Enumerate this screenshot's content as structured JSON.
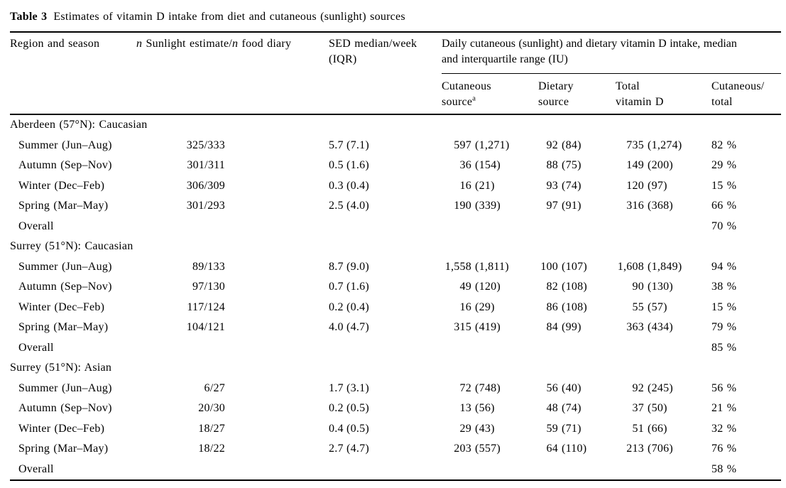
{
  "caption": {
    "label": "Table 3",
    "title": "Estimates of vitamin D intake from diet and cutaneous (sunlight) sources"
  },
  "header": {
    "region": "Region and season",
    "n_col": {
      "i1": "n",
      "t1": " Sunlight estimate/",
      "i2": "n",
      "t2": " food diary"
    },
    "sed": {
      "line1": "SED median/week",
      "line2": "(IQR)"
    },
    "spanner": {
      "line1": "Daily cutaneous (sunlight) and dietary vitamin D intake, median",
      "line2": "and interquartile range (IU)"
    },
    "sub": {
      "cutaneous": {
        "line1": "Cutaneous",
        "line2": "source",
        "sup": "a"
      },
      "dietary": {
        "line1": "Dietary",
        "line2": "source"
      },
      "total": {
        "line1": "Total",
        "line2": "vitamin D"
      },
      "ratio": {
        "line1": "Cutaneous/",
        "line2": "total"
      }
    }
  },
  "body": {
    "rows": [
      {
        "type": "section",
        "label": "Aberdeen (57°N): Caucasian"
      },
      {
        "type": "data",
        "label": "Summer (Jun–Aug)",
        "n": "325/333",
        "sed_med": "5.7",
        "sed_iqr": "(7.1)",
        "cut_med": "597",
        "cut_iqr": "(1,271)",
        "diet_med": "92",
        "diet_iqr": "(84)",
        "tot_med": "735",
        "tot_iqr": "(1,274)",
        "pct": "82 %"
      },
      {
        "type": "data",
        "label": "Autumn (Sep–Nov)",
        "n": "301/311",
        "sed_med": "0.5",
        "sed_iqr": "(1.6)",
        "cut_med": "36",
        "cut_iqr": "(154)",
        "diet_med": "88",
        "diet_iqr": "(75)",
        "tot_med": "149",
        "tot_iqr": "(200)",
        "pct": "29 %"
      },
      {
        "type": "data",
        "label": "Winter (Dec–Feb)",
        "n": "306/309",
        "sed_med": "0.3",
        "sed_iqr": "(0.4)",
        "cut_med": "16",
        "cut_iqr": "(21)",
        "diet_med": "93",
        "diet_iqr": "(74)",
        "tot_med": "120",
        "tot_iqr": "(97)",
        "pct": "15 %"
      },
      {
        "type": "data",
        "label": "Spring (Mar–May)",
        "n": "301/293",
        "sed_med": "2.5",
        "sed_iqr": "(4.0)",
        "cut_med": "190",
        "cut_iqr": "(339)",
        "diet_med": "97",
        "diet_iqr": "(91)",
        "tot_med": "316",
        "tot_iqr": "(368)",
        "pct": "66 %"
      },
      {
        "type": "overall",
        "label": "Overall",
        "pct": "70 %"
      },
      {
        "type": "section",
        "label": "Surrey (51°N): Caucasian"
      },
      {
        "type": "data",
        "label": "Summer (Jun–Aug)",
        "n": "89/133",
        "sed_med": "8.7",
        "sed_iqr": "(9.0)",
        "cut_med": "1,558",
        "cut_iqr": "(1,811)",
        "diet_med": "100",
        "diet_iqr": "(107)",
        "tot_med": "1,608",
        "tot_iqr": "(1,849)",
        "pct": "94 %"
      },
      {
        "type": "data",
        "label": "Autumn (Sep–Nov)",
        "n": "97/130",
        "sed_med": "0.7",
        "sed_iqr": "(1.6)",
        "cut_med": "49",
        "cut_iqr": "(120)",
        "diet_med": "82",
        "diet_iqr": "(108)",
        "tot_med": "90",
        "tot_iqr": "(130)",
        "pct": "38 %"
      },
      {
        "type": "data",
        "label": "Winter (Dec–Feb)",
        "n": "117/124",
        "sed_med": "0.2",
        "sed_iqr": "(0.4)",
        "cut_med": "16",
        "cut_iqr": "(29)",
        "diet_med": "86",
        "diet_iqr": "(108)",
        "tot_med": "55",
        "tot_iqr": "(57)",
        "pct": "15 %"
      },
      {
        "type": "data",
        "label": "Spring (Mar–May)",
        "n": "104/121",
        "sed_med": "4.0",
        "sed_iqr": "(4.7)",
        "cut_med": "315",
        "cut_iqr": "(419)",
        "diet_med": "84",
        "diet_iqr": "(99)",
        "tot_med": "363",
        "tot_iqr": "(434)",
        "pct": "79 %"
      },
      {
        "type": "overall",
        "label": "Overall",
        "pct": "85 %"
      },
      {
        "type": "section",
        "label": "Surrey (51°N): Asian"
      },
      {
        "type": "data",
        "label": "Summer (Jun–Aug)",
        "n": "6/27",
        "sed_med": "1.7",
        "sed_iqr": "(3.1)",
        "cut_med": "72",
        "cut_iqr": "(748)",
        "diet_med": "56",
        "diet_iqr": "(40)",
        "tot_med": "92",
        "tot_iqr": "(245)",
        "pct": "56 %"
      },
      {
        "type": "data",
        "label": "Autumn (Sep–Nov)",
        "n": "20/30",
        "sed_med": "0.2",
        "sed_iqr": "(0.5)",
        "cut_med": "13",
        "cut_iqr": "(56)",
        "diet_med": "48",
        "diet_iqr": "(74)",
        "tot_med": "37",
        "tot_iqr": "(50)",
        "pct": "21 %"
      },
      {
        "type": "data",
        "label": "Winter (Dec–Feb)",
        "n": "18/27",
        "sed_med": "0.4",
        "sed_iqr": "(0.5)",
        "cut_med": "29",
        "cut_iqr": "(43)",
        "diet_med": "59",
        "diet_iqr": "(71)",
        "tot_med": "51",
        "tot_iqr": "(66)",
        "pct": "32 %"
      },
      {
        "type": "data",
        "label": "Spring (Mar–May)",
        "n": "18/22",
        "sed_med": "2.7",
        "sed_iqr": "(4.7)",
        "cut_med": "203",
        "cut_iqr": "(557)",
        "diet_med": "64",
        "diet_iqr": "(110)",
        "tot_med": "213",
        "tot_iqr": "(706)",
        "pct": "76 %"
      },
      {
        "type": "overall",
        "label": "Overall",
        "pct": "58 %"
      }
    ]
  }
}
